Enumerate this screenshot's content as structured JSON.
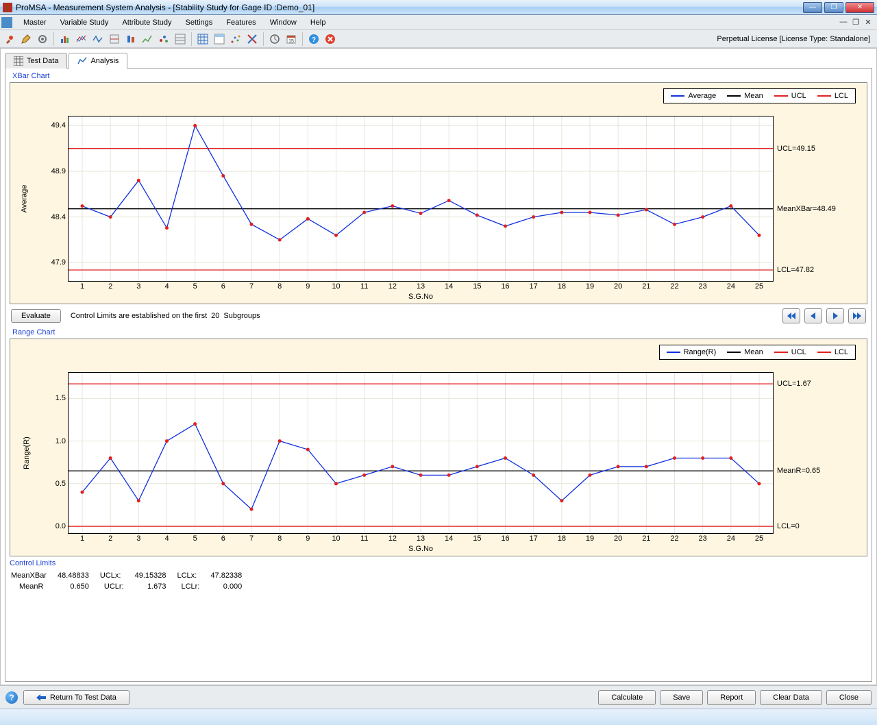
{
  "window": {
    "title": "ProMSA - Measurement System Analysis  -  [Stability Study for Gage ID :Demo_01]"
  },
  "menu": {
    "items": [
      "Master",
      "Variable Study",
      "Attribute Study",
      "Settings",
      "Features",
      "Window",
      "Help"
    ]
  },
  "license": "Perpetual License [License Type: Standalone]",
  "tabs": {
    "test_data": "Test Data",
    "analysis": "Analysis"
  },
  "xbar_chart": {
    "title": "XBar Chart",
    "type": "line",
    "xlabel": "S.G.No",
    "ylabel": "Average",
    "yticks": [
      47.9,
      48.4,
      48.9,
      49.4
    ],
    "ylim": [
      47.7,
      49.5
    ],
    "xticks": [
      1,
      2,
      3,
      4,
      5,
      6,
      7,
      8,
      9,
      10,
      11,
      12,
      13,
      14,
      15,
      16,
      17,
      18,
      19,
      20,
      21,
      22,
      23,
      24,
      25
    ],
    "values": [
      48.52,
      48.4,
      48.8,
      48.28,
      49.4,
      48.85,
      48.32,
      48.15,
      48.38,
      48.2,
      48.45,
      48.52,
      48.44,
      48.58,
      48.42,
      48.3,
      48.4,
      48.45,
      48.45,
      48.42,
      48.48,
      48.32,
      48.4,
      48.52,
      48.2
    ],
    "mean": 48.49,
    "ucl": 49.15,
    "lcl": 47.82,
    "mean_label": "MeanXBar=48.49",
    "ucl_label": "UCL=49.15",
    "lcl_label": "LCL=47.82",
    "legend": {
      "avg": "Average",
      "mean": "Mean",
      "ucl": "UCL",
      "lcl": "LCL"
    },
    "colors": {
      "avg": "#1030e0",
      "mean": "#000000",
      "ucl": "#e02020",
      "lcl": "#e02020",
      "marker": "#e02020",
      "bg": "#fef6e0",
      "plot_bg": "#ffffff",
      "grid": "#e6e6d8"
    }
  },
  "evaluate": {
    "btn": "Evaluate",
    "text_a": "Control Limits are established on the first",
    "count": "20",
    "text_b": "Subgroups"
  },
  "range_chart": {
    "title": "Range Chart",
    "type": "line",
    "xlabel": "S.G.No",
    "ylabel": "Range(R)",
    "yticks": [
      0.0,
      0.5,
      1.0,
      1.5
    ],
    "ylim": [
      -0.08,
      1.8
    ],
    "xticks": [
      1,
      2,
      3,
      4,
      5,
      6,
      7,
      8,
      9,
      10,
      11,
      12,
      13,
      14,
      15,
      16,
      17,
      18,
      19,
      20,
      21,
      22,
      23,
      24,
      25
    ],
    "values": [
      0.4,
      0.8,
      0.3,
      1.0,
      1.2,
      0.5,
      0.2,
      1.0,
      0.9,
      0.5,
      0.6,
      0.7,
      0.6,
      0.6,
      0.7,
      0.8,
      0.6,
      0.3,
      0.6,
      0.7,
      0.7,
      0.8,
      0.8,
      0.8,
      0.5
    ],
    "mean": 0.65,
    "ucl": 1.67,
    "lcl": 0.0,
    "mean_label": "MeanR=0.65",
    "ucl_label": "UCL=1.67",
    "lcl_label": "LCL=0",
    "legend": {
      "avg": "Range(R)",
      "mean": "Mean",
      "ucl": "UCL",
      "lcl": "LCL"
    },
    "colors": {
      "avg": "#1030e0",
      "mean": "#000000",
      "ucl": "#e02020",
      "lcl": "#e02020",
      "marker": "#e02020",
      "bg": "#fef6e0",
      "plot_bg": "#ffffff",
      "grid": "#e6e6d8"
    }
  },
  "control_limits": {
    "title": "Control Limits",
    "row1": {
      "a": "MeanXBar",
      "av": "48.48833",
      "b": "UCLx:",
      "bv": "49.15328",
      "c": "LCLx:",
      "cv": "47.82338"
    },
    "row2": {
      "a": "MeanR",
      "av": "0.650",
      "b": "UCLr:",
      "bv": "1.673",
      "c": "LCLr:",
      "cv": "0.000"
    }
  },
  "bottom": {
    "return": "Return To Test Data",
    "calculate": "Calculate",
    "save": "Save",
    "report": "Report",
    "clear": "Clear Data",
    "close": "Close"
  }
}
